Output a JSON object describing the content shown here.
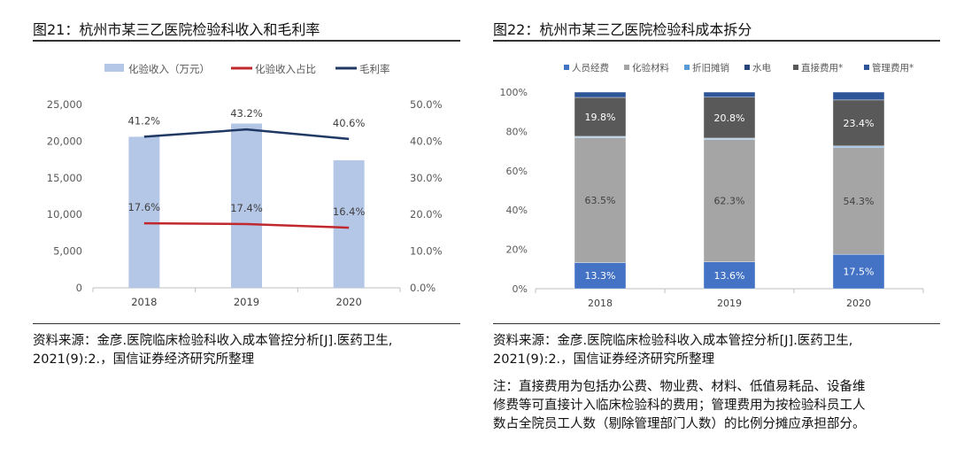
{
  "left": {
    "title": "图21：杭州市某三乙医院检验科收入和毛利率",
    "source_line1": "资料来源：金彦.医院临床检验科收入成本管控分析[J].医药卫生,",
    "source_line2": "2021(9):2.，国信证券经济研究所整理"
  },
  "right": {
    "title": "图22：杭州市某三乙医院检验科成本拆分",
    "source_line1": "资料来源：金彦.医院临床检验科收入成本管控分析[J].医药卫生,",
    "source_line2": "2021(9):2.，国信证券经济研究所整理",
    "note_line1": "注：直接费用为包括办公费、物业费、材料、低值易耗品、设备维",
    "note_line2": "修费等可直接计入临床检验科的费用；管理费用为按检验科员工人",
    "note_line3": "数占全院员工人数（剔除管理部门人数）的比例分摊应承担部分。"
  },
  "chart_data": [
    {
      "type": "bar",
      "categories": [
        "2018",
        "2019",
        "2020"
      ],
      "series": [
        {
          "name": "化验收入（万元）",
          "kind": "bar",
          "axis": "left",
          "color": "#b4c7e7",
          "values": [
            20600,
            22400,
            17400
          ]
        },
        {
          "name": "化验收入占比",
          "kind": "line",
          "axis": "right",
          "color": "#c0282d",
          "values": [
            17.6,
            17.4,
            16.4
          ],
          "labels": [
            "17.6%",
            "17.4%",
            "16.4%"
          ]
        },
        {
          "name": "毛利率",
          "kind": "line",
          "axis": "right",
          "color": "#1f3864",
          "values": [
            41.2,
            43.2,
            40.6
          ],
          "labels": [
            "41.2%",
            "43.2%",
            "40.6%"
          ]
        }
      ],
      "ylim": [
        0,
        25000
      ],
      "y_ticks": [
        "0",
        "5,000",
        "10,000",
        "15,000",
        "20,000",
        "25,000"
      ],
      "y2lim": [
        0,
        50
      ],
      "y2_ticks": [
        "0.0%",
        "10.0%",
        "20.0%",
        "30.0%",
        "40.0%",
        "50.0%"
      ],
      "legend_position": "top"
    },
    {
      "type": "bar",
      "stacked": true,
      "categories": [
        "2018",
        "2019",
        "2020"
      ],
      "series": [
        {
          "name": "人员经费",
          "color": "#4472c4",
          "values": [
            13.3,
            13.6,
            17.5
          ],
          "labels": [
            "13.3%",
            "13.6%",
            "17.5%"
          ]
        },
        {
          "name": "化验材料",
          "color": "#a5a5a5",
          "values": [
            63.5,
            62.3,
            54.3
          ],
          "labels": [
            "63.5%",
            "62.3%",
            "54.3%"
          ]
        },
        {
          "name": "折旧摊销",
          "color": "#5b9bd5",
          "values": [
            0.5,
            0.5,
            0.6
          ],
          "labels": [
            "",
            "",
            ""
          ]
        },
        {
          "name": "水电",
          "color": "#264478",
          "values": [
            0.2,
            0.2,
            0.2
          ],
          "labels": [
            "",
            "",
            ""
          ]
        },
        {
          "name": "直接费用*",
          "color": "#595959",
          "values": [
            19.8,
            20.8,
            23.4
          ],
          "labels": [
            "19.8%",
            "20.8%",
            "23.4%"
          ]
        },
        {
          "name": "管理费用*",
          "color": "#2e5597",
          "values": [
            2.7,
            2.6,
            4.0
          ],
          "labels": [
            "",
            "",
            ""
          ]
        }
      ],
      "ylim": [
        0,
        100
      ],
      "y_ticks": [
        "0%",
        "20%",
        "40%",
        "60%",
        "80%",
        "100%"
      ],
      "legend_position": "top"
    }
  ]
}
